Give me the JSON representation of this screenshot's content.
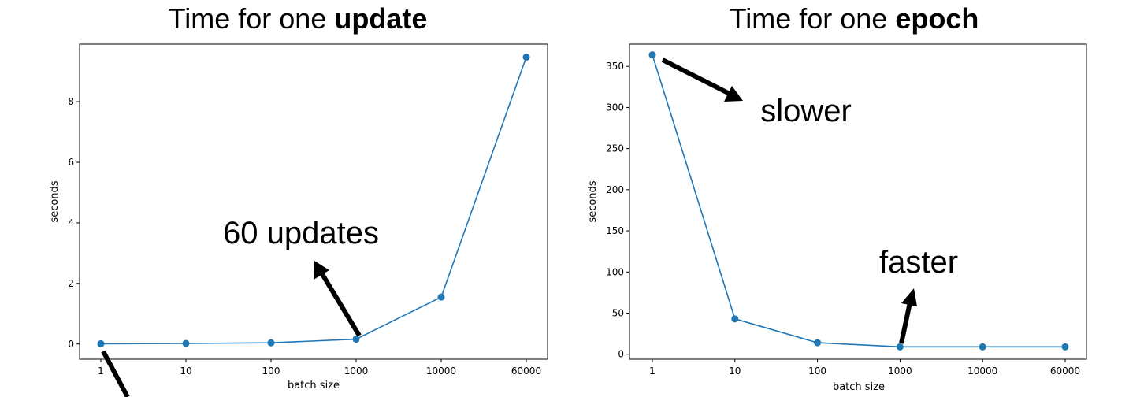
{
  "chart_data": [
    {
      "type": "line",
      "title_prefix": "Time for one ",
      "title_bold": "update",
      "xlabel": "batch size",
      "ylabel": "seconds",
      "categories": [
        "1",
        "10",
        "100",
        "1000",
        "10000",
        "60000"
      ],
      "values": [
        0.01,
        0.02,
        0.04,
        0.16,
        1.55,
        9.47
      ],
      "ylim": [
        -0.5,
        9.9
      ],
      "yticks": [
        0,
        2,
        4,
        6,
        8
      ],
      "grid": false,
      "annotations": [
        {
          "text": "60 updates",
          "arrow_to_category": "1000",
          "arrow_to_value": 0.16
        },
        {
          "text": "",
          "arrow_from_category": "1",
          "arrow_from_value": 0.01
        }
      ]
    },
    {
      "type": "line",
      "title_prefix": "Time for one ",
      "title_bold": "epoch",
      "xlabel": "batch size",
      "ylabel": "seconds",
      "categories": [
        "1",
        "10",
        "100",
        "1000",
        "10000",
        "60000"
      ],
      "values": [
        364,
        43,
        14,
        9,
        9,
        9
      ],
      "ylim": [
        -6,
        377
      ],
      "yticks": [
        0,
        50,
        100,
        150,
        200,
        250,
        300,
        350
      ],
      "grid": false,
      "annotations": [
        {
          "text": "slower",
          "arrow_from_category": "1",
          "arrow_from_value": 364
        },
        {
          "text": "faster",
          "arrow_from_category": "1000",
          "arrow_from_value": 9
        }
      ]
    }
  ],
  "colors": {
    "series": "#1f77b4",
    "annotation": "#000000"
  }
}
